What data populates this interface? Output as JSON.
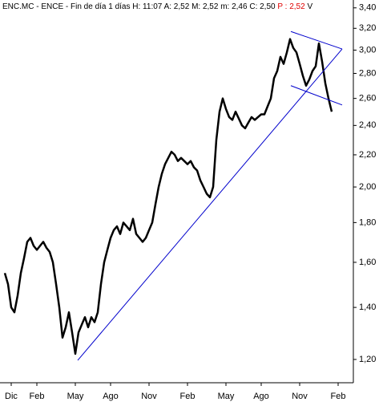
{
  "chart_data": {
    "type": "line",
    "title": "ENC.MC - ENCE - Fin de día 1 días",
    "quote": [
      "H: 11:07",
      "A: 2,52",
      "M: 2,52",
      "m: 2,46",
      "C: 2,50"
    ],
    "last": "P : 2,52",
    "volume": "V",
    "log_scale": true,
    "grid": false,
    "categories": [
      null,
      null,
      "Dic",
      null,
      null,
      null,
      null,
      null,
      null,
      null,
      "Feb",
      null,
      null,
      null,
      null,
      null,
      null,
      null,
      null,
      null,
      null,
      null,
      "May",
      null,
      null,
      null,
      null,
      null,
      null,
      null,
      null,
      null,
      null,
      "Ago",
      null,
      null,
      null,
      null,
      null,
      null,
      null,
      null,
      null,
      null,
      null,
      "Nov",
      null,
      null,
      null,
      null,
      null,
      null,
      null,
      null,
      null,
      null,
      null,
      "Feb",
      null,
      null,
      null,
      null,
      null,
      null,
      null,
      null,
      null,
      null,
      null,
      "May",
      null,
      null,
      null,
      null,
      null,
      null,
      null,
      null,
      null,
      null,
      "Ago",
      null,
      null,
      null,
      null,
      null,
      null,
      null,
      null,
      null,
      null,
      null,
      "Nov",
      null,
      null,
      null,
      null,
      null,
      null,
      null,
      null,
      null,
      null,
      null,
      "Feb",
      null,
      null,
      null,
      null
    ],
    "series": [
      {
        "name": "ENC.MC",
        "color": "#000000",
        "values": [
          1.55,
          1.5,
          1.4,
          1.38,
          1.45,
          1.55,
          1.62,
          1.7,
          1.72,
          1.68,
          1.66,
          1.68,
          1.7,
          1.67,
          1.65,
          1.6,
          1.5,
          1.4,
          1.28,
          1.32,
          1.38,
          1.3,
          1.22,
          1.3,
          1.33,
          1.36,
          1.32,
          1.36,
          1.34,
          1.38,
          1.5,
          1.6,
          1.66,
          1.72,
          1.76,
          1.78,
          1.74,
          1.8,
          1.78,
          1.76,
          1.82,
          1.74,
          1.72,
          1.7,
          1.72,
          1.76,
          1.8,
          1.9,
          2.0,
          2.08,
          2.14,
          2.18,
          2.22,
          2.2,
          2.16,
          2.18,
          2.16,
          2.14,
          2.16,
          2.12,
          2.1,
          2.04,
          2.0,
          1.96,
          1.94,
          2.0,
          2.3,
          2.5,
          2.6,
          2.52,
          2.46,
          2.44,
          2.5,
          2.45,
          2.4,
          2.38,
          2.42,
          2.46,
          2.44,
          2.46,
          2.48,
          2.48,
          2.54,
          2.6,
          2.76,
          2.82,
          2.94,
          2.88,
          2.98,
          3.1,
          3.02,
          2.98,
          2.88,
          2.78,
          2.7,
          2.75,
          2.82,
          2.86,
          3.06,
          2.9,
          2.72,
          2.6,
          2.5,
          null,
          null,
          null,
          null,
          null,
          null
        ]
      }
    ],
    "trendlines": [
      {
        "color": "#0000cc",
        "from": [
          22.75,
          1.197
        ],
        "to": [
          105.25,
          3.01
        ]
      },
      {
        "color": "#0000cc",
        "from": [
          89.25,
          3.17
        ],
        "to": [
          105.25,
          3.01
        ]
      },
      {
        "color": "#0000cc",
        "from": [
          89.25,
          2.7
        ],
        "to": [
          105.25,
          2.55
        ]
      }
    ],
    "ylim": [
      1.12,
      3.48
    ],
    "yticks": [
      {
        "value": 1.2,
        "label": "1,20"
      },
      {
        "value": 1.4,
        "label": "1,40"
      },
      {
        "value": 1.6,
        "label": "1,60"
      },
      {
        "value": 1.8,
        "label": "1,80"
      },
      {
        "value": 2.0,
        "label": "2,00"
      },
      {
        "value": 2.2,
        "label": "2,20"
      },
      {
        "value": 2.4,
        "label": "2,40"
      },
      {
        "value": 2.6,
        "label": "2,60"
      },
      {
        "value": 2.8,
        "label": "2,80"
      },
      {
        "value": 3.0,
        "label": "3,00"
      },
      {
        "value": 3.2,
        "label": "3,20"
      },
      {
        "value": 3.4,
        "label": "3,40"
      }
    ]
  }
}
